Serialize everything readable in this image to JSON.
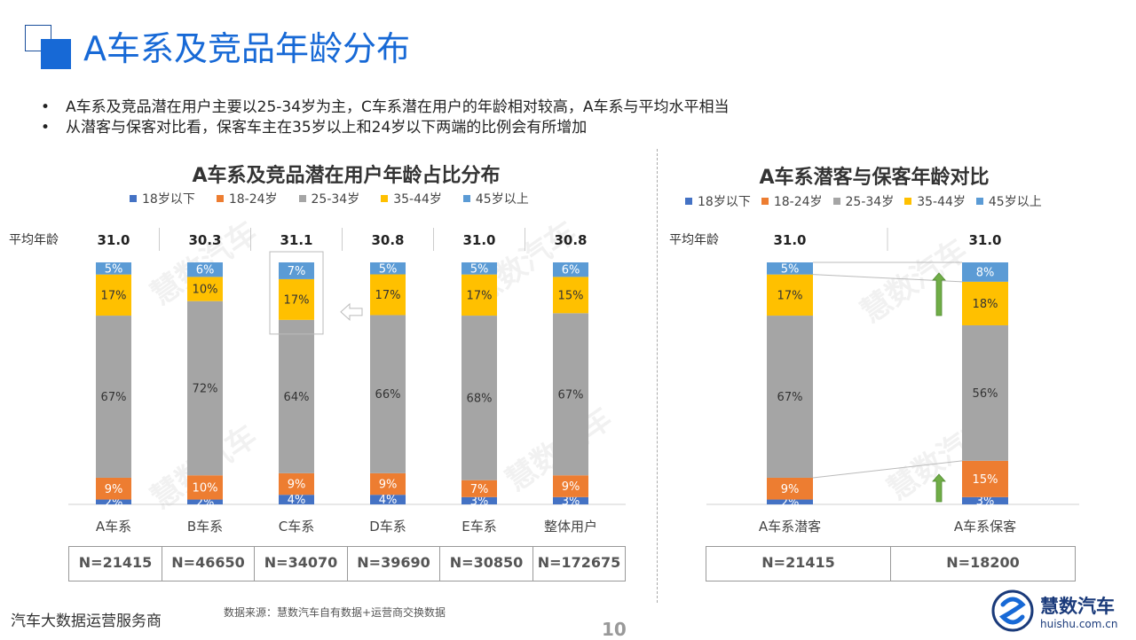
{
  "title": "A车系及竞品年龄分布",
  "bullets": [
    "A车系及竞品潜在用户主要以25-34岁为主，C车系潜在用户的年龄相对较高，A车系与平均水平相当",
    "从潜客与保客对比看，保客车主在35岁以上和24岁以下两端的比例会有所增加"
  ],
  "legend_labels": [
    "18岁以下",
    "18-24岁",
    "25-34岁",
    "35-44岁",
    "45岁以上"
  ],
  "colors": [
    "#4472c4",
    "#ed7d31",
    "#a5a5a5",
    "#ffc000",
    "#5b9bd5"
  ],
  "avg_age_label": "平均年龄",
  "left_chart": {
    "title": "A车系及竞品潜在用户年龄占比分布",
    "n_values": [
      "N=21415",
      "N=46650",
      "N=34070",
      "N=39690",
      "N=30850",
      "N=172675"
    ]
  },
  "right_chart": {
    "title": "A车系潜客与保客年龄对比",
    "n_values": [
      "N=21415",
      "N=18200"
    ]
  },
  "chart_data": [
    {
      "type": "bar",
      "stacked": true,
      "title": "A车系及竞品潜在用户年龄占比分布",
      "categories": [
        "A车系",
        "B车系",
        "C车系",
        "D车系",
        "E车系",
        "整体用户"
      ],
      "avg_age": [
        "31.0",
        "30.3",
        "31.1",
        "30.8",
        "31.0",
        "30.8"
      ],
      "series": [
        {
          "name": "18岁以下",
          "values": [
            2,
            2,
            4,
            4,
            3,
            3
          ]
        },
        {
          "name": "18-24岁",
          "values": [
            9,
            10,
            9,
            9,
            7,
            9
          ]
        },
        {
          "name": "25-34岁",
          "values": [
            67,
            72,
            64,
            66,
            68,
            67
          ]
        },
        {
          "name": "35-44岁",
          "values": [
            17,
            10,
            17,
            17,
            17,
            15
          ]
        },
        {
          "name": "45岁以上",
          "values": [
            5,
            6,
            7,
            5,
            5,
            6
          ]
        }
      ],
      "legend": "top",
      "highlight_category": "C车系"
    },
    {
      "type": "bar",
      "stacked": true,
      "title": "A车系潜客与保客年龄对比",
      "categories": [
        "A车系潜客",
        "A车系保客"
      ],
      "avg_age": [
        "31.0",
        "31.0"
      ],
      "series": [
        {
          "name": "18岁以下",
          "values": [
            2,
            3
          ]
        },
        {
          "name": "18-24岁",
          "values": [
            9,
            15
          ]
        },
        {
          "name": "25-34岁",
          "values": [
            67,
            56
          ]
        },
        {
          "name": "35-44岁",
          "values": [
            17,
            18
          ]
        },
        {
          "name": "45岁以上",
          "values": [
            5,
            8
          ]
        }
      ],
      "legend": "top"
    }
  ],
  "footer": {
    "tagline": "汽车大数据运营服务商",
    "source": "数据来源：慧数汽车自有数据+运营商交换数据",
    "page": "10",
    "logo_name": "慧数汽车",
    "logo_url": "huishu.com.cn"
  }
}
